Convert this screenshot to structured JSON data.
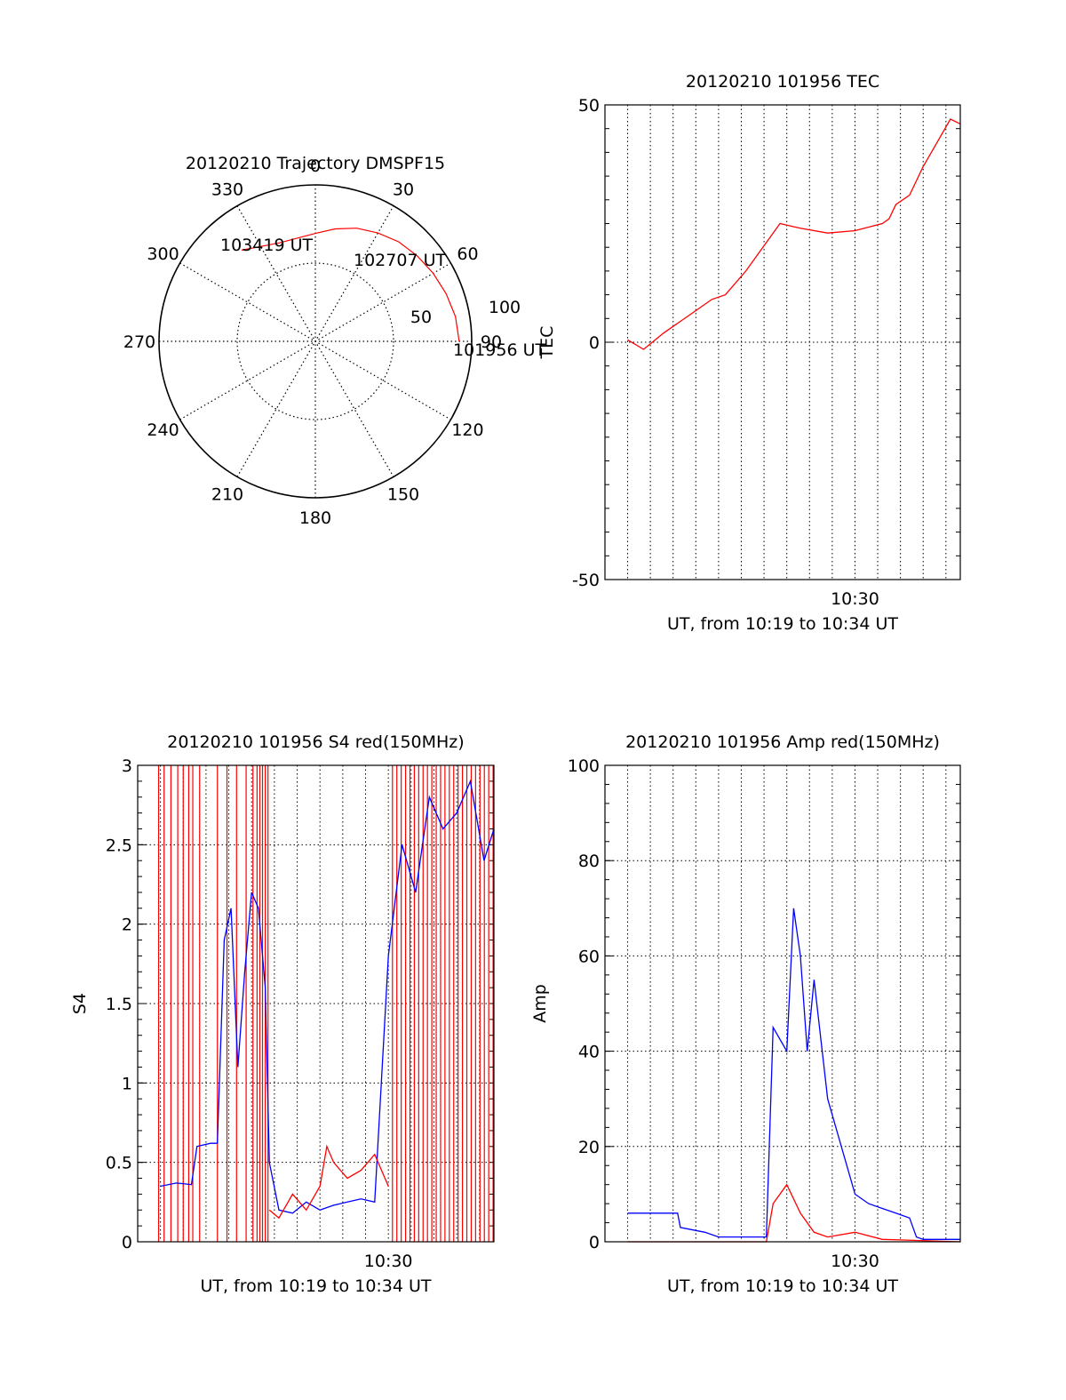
{
  "chart_data": [
    {
      "type": "polar",
      "title": "20120210 Trajectory DMSPF15",
      "angle_labels": [
        {
          "angle": 0,
          "text": "0"
        },
        {
          "angle": 30,
          "text": "30"
        },
        {
          "angle": 60,
          "text": "60"
        },
        {
          "angle": 90,
          "text": "90"
        },
        {
          "angle": 120,
          "text": "120"
        },
        {
          "angle": 150,
          "text": "150"
        },
        {
          "angle": 180,
          "text": "180"
        },
        {
          "angle": 210,
          "text": "210"
        },
        {
          "angle": 240,
          "text": "240"
        },
        {
          "angle": 270,
          "text": "270"
        },
        {
          "angle": 300,
          "text": "300"
        },
        {
          "angle": 330,
          "text": "330"
        }
      ],
      "radial_labels": [
        {
          "r": 50,
          "text": "50"
        },
        {
          "r": 100,
          "text": "100"
        }
      ],
      "r_max": 100,
      "trajectory_color": "#ff0000",
      "trajectory": [
        {
          "az": 90,
          "r": 92
        },
        {
          "az": 80,
          "r": 91
        },
        {
          "az": 70,
          "r": 89
        },
        {
          "az": 60,
          "r": 87
        },
        {
          "az": 50,
          "r": 85
        },
        {
          "az": 40,
          "r": 83
        },
        {
          "az": 30,
          "r": 80
        },
        {
          "az": 20,
          "r": 77
        },
        {
          "az": 10,
          "r": 73
        },
        {
          "az": 0,
          "r": 69
        },
        {
          "az": -10,
          "r": 67
        },
        {
          "az": -20,
          "r": 67
        },
        {
          "az": -30,
          "r": 70
        },
        {
          "az": -39,
          "r": 75
        }
      ],
      "annotations": [
        {
          "text": "103419 UT",
          "az": -39,
          "r": 75
        },
        {
          "text": "102707 UT",
          "az": 30,
          "r": 80
        },
        {
          "text": "101956 UT",
          "az": 90,
          "r": 92
        }
      ]
    },
    {
      "type": "line",
      "title": "20120210 101956 TEC",
      "ylabel": "TEC",
      "xlabel": "UT, from 10:19 to 10:34 UT",
      "xlim": [
        10.3167,
        10.5772
      ],
      "ylim": [
        -50,
        50
      ],
      "yticks": [
        -50,
        0,
        50
      ],
      "xtick_labels": [
        {
          "x": 10.5,
          "text": "10:30"
        }
      ],
      "series": [
        {
          "color": "#ff0000",
          "x": [
            10.3333,
            10.345,
            10.36,
            10.38,
            10.395,
            10.405,
            10.42,
            10.44,
            10.445,
            10.46,
            10.48,
            10.5,
            10.52,
            10.525,
            10.53,
            10.54,
            10.55,
            10.56,
            10.57,
            10.5772
          ],
          "y": [
            0.5,
            -1.5,
            2,
            6,
            9,
            10,
            15,
            23,
            25,
            24,
            23,
            23.5,
            25,
            26,
            29,
            31,
            37,
            42,
            47,
            46
          ]
        }
      ]
    },
    {
      "type": "line",
      "title": "20120210 101956 S4 red(150MHz)",
      "ylabel": "S4",
      "xlabel": "UT, from 10:19 to 10:34 UT",
      "xlim": [
        10.3167,
        10.5772
      ],
      "ylim": [
        0,
        3
      ],
      "yticks": [
        0,
        0.5,
        1,
        1.5,
        2,
        2.5,
        3
      ],
      "xtick_labels": [
        {
          "x": 10.5,
          "text": "10:30"
        }
      ],
      "series": [
        {
          "color": "#0000ff",
          "x": [
            10.3333,
            10.345,
            10.356,
            10.36,
            10.37,
            10.375,
            10.38,
            10.385,
            10.39,
            10.395,
            10.4,
            10.405,
            10.41,
            10.413,
            10.42,
            10.43,
            10.44,
            10.45,
            10.46,
            10.47,
            10.48,
            10.49,
            10.5,
            10.51,
            10.52,
            10.53,
            10.54,
            10.55,
            10.56,
            10.57,
            10.5772
          ],
          "y": [
            0.35,
            0.37,
            0.36,
            0.6,
            0.62,
            0.62,
            1.9,
            2.1,
            1.1,
            1.7,
            2.2,
            2.1,
            1.6,
            0.5,
            0.2,
            0.18,
            0.25,
            0.2,
            0.23,
            0.25,
            0.27,
            0.25,
            1.8,
            2.5,
            2.2,
            2.8,
            2.6,
            2.7,
            2.9,
            2.4,
            2.6
          ]
        },
        {
          "color": "#ff0000",
          "x": [
            10.413,
            10.42,
            10.43,
            10.44,
            10.45,
            10.455,
            10.46,
            10.47,
            10.48,
            10.49,
            10.5
          ],
          "y": [
            0.2,
            0.15,
            0.3,
            0.2,
            0.35,
            0.6,
            0.5,
            0.4,
            0.45,
            0.55,
            0.35
          ]
        }
      ]
    },
    {
      "type": "line",
      "title": "20120210 101956 Amp red(150MHz)",
      "ylabel": "Amp",
      "xlabel": "UT, from 10:19 to 10:34 UT",
      "xlim": [
        10.3167,
        10.5772
      ],
      "ylim": [
        0,
        100
      ],
      "yticks": [
        0,
        20,
        40,
        60,
        80,
        100
      ],
      "xtick_labels": [
        {
          "x": 10.5,
          "text": "10:30"
        }
      ],
      "series": [
        {
          "color": "#0000ff",
          "x": [
            10.3333,
            10.37,
            10.372,
            10.39,
            10.4,
            10.435,
            10.44,
            10.45,
            10.455,
            10.46,
            10.465,
            10.47,
            10.48,
            10.49,
            10.5,
            10.51,
            10.52,
            10.53,
            10.54,
            10.545,
            10.55,
            10.57,
            10.5772
          ],
          "y": [
            6,
            6,
            3,
            2,
            1,
            1,
            45,
            40,
            70,
            60,
            40,
            55,
            30,
            20,
            10,
            8,
            7,
            6,
            5,
            1,
            0.5,
            0.5,
            0.5
          ]
        },
        {
          "color": "#ff0000",
          "x": [
            10.3333,
            10.435,
            10.44,
            10.45,
            10.46,
            10.47,
            10.48,
            10.5,
            10.52,
            10.5772
          ],
          "y": [
            0,
            0,
            8,
            12,
            6,
            2,
            1,
            2,
            0.5,
            0
          ]
        }
      ]
    }
  ]
}
